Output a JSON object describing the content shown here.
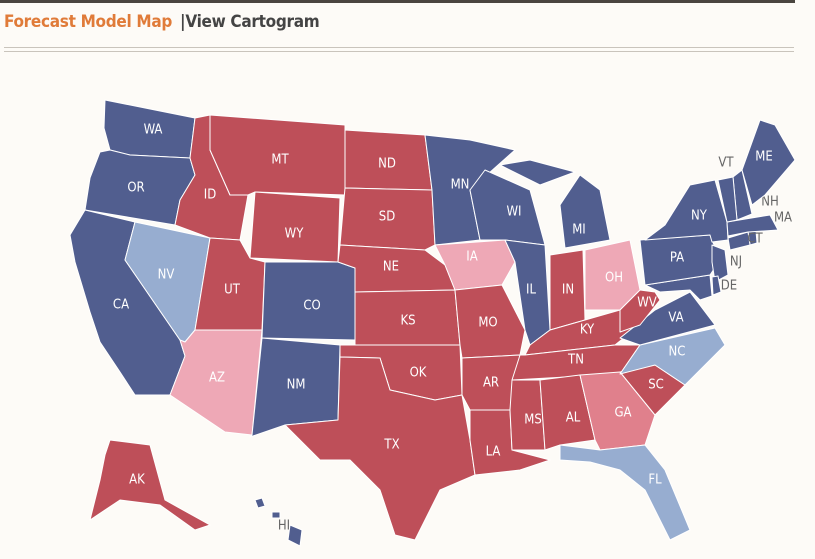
{
  "header": {
    "active_tab": "Forecast Model Map",
    "other_tab": "View Cartogram"
  },
  "map": {
    "states": [
      {
        "label": "WA",
        "color": "#515e8f"
      },
      {
        "label": "OR",
        "color": "#515e8f"
      },
      {
        "label": "CA",
        "color": "#515e8f"
      },
      {
        "label": "NV",
        "color": "#97add0"
      },
      {
        "label": "ID",
        "color": "#be4f59"
      },
      {
        "label": "MT",
        "color": "#be4f59"
      },
      {
        "label": "WY",
        "color": "#be4f59"
      },
      {
        "label": "UT",
        "color": "#be4f59"
      },
      {
        "label": "AZ",
        "color": "#eea8b6"
      },
      {
        "label": "CO",
        "color": "#515e8f"
      },
      {
        "label": "NM",
        "color": "#515e8f"
      },
      {
        "label": "ND",
        "color": "#be4f59"
      },
      {
        "label": "SD",
        "color": "#be4f59"
      },
      {
        "label": "NE",
        "color": "#be4f59"
      },
      {
        "label": "KS",
        "color": "#be4f59"
      },
      {
        "label": "OK",
        "color": "#be4f59"
      },
      {
        "label": "TX",
        "color": "#be4f59"
      },
      {
        "label": "MN",
        "color": "#515e8f"
      },
      {
        "label": "IA",
        "color": "#eea8b6"
      },
      {
        "label": "MO",
        "color": "#be4f59"
      },
      {
        "label": "AR",
        "color": "#be4f59"
      },
      {
        "label": "LA",
        "color": "#be4f59"
      },
      {
        "label": "WI",
        "color": "#515e8f"
      },
      {
        "label": "IL",
        "color": "#515e8f"
      },
      {
        "label": "MI",
        "color": "#515e8f"
      },
      {
        "label": "IN",
        "color": "#be4f59"
      },
      {
        "label": "OH",
        "color": "#eea8b6"
      },
      {
        "label": "KY",
        "color": "#be4f59"
      },
      {
        "label": "TN",
        "color": "#be4f59"
      },
      {
        "label": "MS",
        "color": "#be4f59"
      },
      {
        "label": "AL",
        "color": "#be4f59"
      },
      {
        "label": "GA",
        "color": "#e0808c"
      },
      {
        "label": "FL",
        "color": "#97add0"
      },
      {
        "label": "SC",
        "color": "#be4f59"
      },
      {
        "label": "NC",
        "color": "#97add0"
      },
      {
        "label": "VA",
        "color": "#515e8f"
      },
      {
        "label": "WV",
        "color": "#be4f59"
      },
      {
        "label": "PA",
        "color": "#515e8f"
      },
      {
        "label": "NY",
        "color": "#515e8f"
      },
      {
        "label": "NJ",
        "color": "#515e8f"
      },
      {
        "label": "DE",
        "color": "#515e8f"
      },
      {
        "label": "CT",
        "color": "#515e8f"
      },
      {
        "label": "MA",
        "color": "#515e8f"
      },
      {
        "label": "NH",
        "color": "#515e8f"
      },
      {
        "label": "VT",
        "color": "#515e8f"
      },
      {
        "label": "ME",
        "color": "#515e8f"
      },
      {
        "label": "AK",
        "color": "#be4f59"
      },
      {
        "label": "HI",
        "color": "#515e8f"
      }
    ]
  }
}
